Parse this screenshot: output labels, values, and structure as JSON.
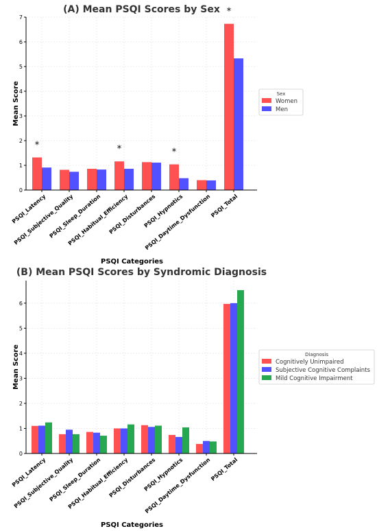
{
  "chart_data": [
    {
      "type": "bar",
      "title": "(A) Mean PSQI Scores by Sex",
      "xlabel": "PSQI Categories",
      "ylabel": "Mean Score",
      "ylim": [
        0,
        7
      ],
      "yticks": [
        0,
        1,
        2,
        3,
        4,
        5,
        6,
        7
      ],
      "grid": true,
      "legend_position": "right",
      "legend_title": "Sex",
      "categories": [
        "PSQI_Latency",
        "PSQI_Subjective_Quality",
        "PSQI_Sleep_Duration",
        "PSQI_Habitual_Efficiency",
        "PSQI_Disturbances",
        "PSQI_Hypnotics",
        "PSQI_Daytime_Dysfunction",
        "PSQI_Total"
      ],
      "series": [
        {
          "name": "Women",
          "color": "#ff3333",
          "values": [
            1.32,
            0.82,
            0.86,
            1.16,
            1.13,
            1.04,
            0.4,
            6.73
          ]
        },
        {
          "name": "Men",
          "color": "#3333ff",
          "values": [
            0.91,
            0.74,
            0.83,
            0.86,
            1.11,
            0.48,
            0.39,
            5.33
          ]
        }
      ],
      "annotations": [
        {
          "category": "PSQI_Latency",
          "text": "*"
        },
        {
          "category": "PSQI_Habitual_Efficiency",
          "text": "*"
        },
        {
          "category": "PSQI_Hypnotics",
          "text": "*"
        },
        {
          "category": "PSQI_Total",
          "text": "*"
        }
      ]
    },
    {
      "type": "bar",
      "title": "(B) Mean PSQI Scores by Syndromic Diagnosis",
      "xlabel": "PSQI Categories",
      "ylabel": "Mean Score",
      "ylim": [
        0,
        6.9
      ],
      "yticks": [
        0,
        1,
        2,
        3,
        4,
        5,
        6
      ],
      "grid": true,
      "legend_position": "right",
      "legend_title": "Diagnosis",
      "categories": [
        "PSQI_Latency",
        "PSQI_Subjective_Quality",
        "PSQI_Sleep_Duration",
        "PSQI_Habitual_Efficiency",
        "PSQI_Disturbances",
        "PSQI_Hypnotics",
        "PSQI_Daytime_Dysfunction",
        "PSQI_Total"
      ],
      "series": [
        {
          "name": "Cognitively Unimpaired",
          "color": "#ff3333",
          "values": [
            1.1,
            0.77,
            0.86,
            1.0,
            1.13,
            0.74,
            0.38,
            5.97
          ]
        },
        {
          "name": "Subjective Cognitive Complaints",
          "color": "#3333ff",
          "values": [
            1.11,
            0.95,
            0.83,
            1.0,
            1.06,
            0.66,
            0.5,
            6.0
          ]
        },
        {
          "name": "Mild Cognitive Impairment",
          "color": "#009933",
          "values": [
            1.24,
            0.77,
            0.71,
            1.16,
            1.11,
            1.04,
            0.48,
            6.52
          ]
        }
      ],
      "annotations": []
    }
  ]
}
